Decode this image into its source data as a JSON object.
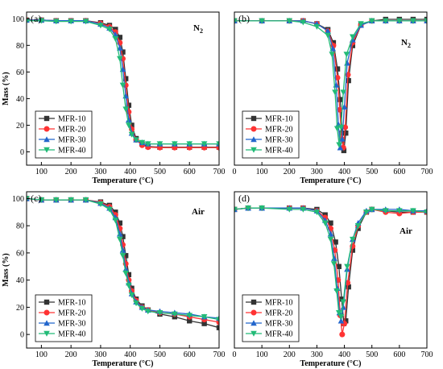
{
  "chart_data": [
    {
      "type": "line",
      "panel_label": "(a)",
      "atmosphere": "N",
      "atmosphere_subscript": "2",
      "xlabel": "Temperature (°C)",
      "ylabel": "Mass (%)",
      "xlim": [
        50,
        700
      ],
      "ylim": [
        -10,
        105
      ],
      "xticks": [
        100,
        200,
        300,
        400,
        500,
        600,
        700
      ],
      "xtick_labels": [
        "100",
        "200",
        "300",
        "400",
        "500",
        "600",
        "700"
      ],
      "yticks": [
        0,
        20,
        40,
        60,
        80,
        100
      ],
      "ytick_labels": [
        "0",
        "20",
        "40",
        "60",
        "80",
        "100"
      ],
      "legend_position": "bottom-left",
      "series": [
        {
          "name": "MFR-10",
          "color": "#333333",
          "marker": "square",
          "x": [
            50,
            100,
            150,
            200,
            250,
            300,
            330,
            350,
            365,
            375,
            385,
            395,
            405,
            420,
            440,
            460,
            500,
            550,
            600,
            650,
            700
          ],
          "y": [
            99,
            99,
            98.5,
            98.5,
            98.5,
            97,
            95,
            92,
            86,
            75,
            55,
            35,
            20,
            10,
            6,
            4,
            3.5,
            3.5,
            3.5,
            3.5,
            3.5
          ]
        },
        {
          "name": "MFR-20",
          "color": "#ff3333",
          "marker": "circle",
          "x": [
            50,
            100,
            150,
            200,
            250,
            300,
            330,
            350,
            365,
            375,
            385,
            395,
            405,
            420,
            440,
            460,
            500,
            550,
            600,
            650,
            700
          ],
          "y": [
            99,
            99,
            98.5,
            98.5,
            98.5,
            96.5,
            94,
            90,
            82,
            70,
            50,
            30,
            17,
            9,
            5,
            3.5,
            3.2,
            3.2,
            3.2,
            3.2,
            3.2
          ]
        },
        {
          "name": "MFR-30",
          "color": "#2266cc",
          "marker": "triangle",
          "x": [
            50,
            100,
            150,
            200,
            250,
            300,
            330,
            350,
            365,
            375,
            385,
            395,
            405,
            420,
            440,
            460,
            500,
            550,
            600,
            650,
            700
          ],
          "y": [
            99,
            99,
            98.5,
            98.5,
            98.5,
            96,
            93,
            88,
            78,
            62,
            42,
            24,
            14,
            9,
            7,
            6,
            6,
            6,
            6,
            6,
            6
          ]
        },
        {
          "name": "MFR-40",
          "color": "#22bb77",
          "marker": "triangle-down",
          "x": [
            50,
            100,
            150,
            200,
            250,
            300,
            330,
            350,
            365,
            375,
            385,
            395,
            405,
            420,
            440,
            460,
            500,
            550,
            600,
            650,
            700
          ],
          "y": [
            98.5,
            98.5,
            98,
            98,
            98,
            95,
            92,
            85,
            70,
            50,
            32,
            20,
            13,
            9,
            7,
            6,
            6,
            6,
            6,
            6,
            6
          ]
        }
      ]
    },
    {
      "type": "line",
      "panel_label": "(b)",
      "atmosphere": "N",
      "atmosphere_subscript": "2",
      "xlabel": "Temperature (°C)",
      "ylabel": "",
      "xlim": [
        0,
        700
      ],
      "ylim": [
        0,
        105
      ],
      "xticks": [
        0,
        100,
        200,
        300,
        400,
        500,
        600,
        700
      ],
      "xtick_labels": [
        "0",
        "100",
        "200",
        "300",
        "400",
        "500",
        "600",
        "700"
      ],
      "legend_position": "bottom-center",
      "series": [
        {
          "name": "MFR-10",
          "color": "#333333",
          "marker": "square",
          "x": [
            0,
            100,
            200,
            250,
            300,
            340,
            360,
            375,
            385,
            392,
            398,
            405,
            415,
            430,
            460,
            500,
            550,
            600,
            650,
            700
          ],
          "y": [
            99,
            99,
            99,
            99,
            97,
            93,
            84,
            66,
            45,
            22,
            10,
            22,
            58,
            82,
            96,
            99,
            100,
            100,
            100,
            100
          ]
        },
        {
          "name": "MFR-20",
          "color": "#ff3333",
          "marker": "circle",
          "x": [
            0,
            100,
            200,
            250,
            300,
            340,
            360,
            375,
            383,
            390,
            396,
            403,
            413,
            430,
            460,
            500,
            550,
            600,
            650,
            700
          ],
          "y": [
            99,
            99,
            99,
            99,
            97,
            92,
            82,
            60,
            38,
            18,
            12,
            26,
            62,
            84,
            96,
            99,
            99,
            99,
            99,
            99
          ]
        },
        {
          "name": "MFR-30",
          "color": "#2266cc",
          "marker": "triangle",
          "x": [
            0,
            100,
            200,
            250,
            300,
            340,
            358,
            370,
            378,
            385,
            392,
            400,
            410,
            430,
            460,
            500,
            550,
            600,
            650,
            700
          ],
          "y": [
            99,
            99,
            99,
            99,
            97,
            92,
            80,
            55,
            28,
            12,
            18,
            40,
            70,
            86,
            96,
            99,
            99,
            99,
            99,
            99
          ]
        },
        {
          "name": "MFR-40",
          "color": "#22bb77",
          "marker": "triangle-down",
          "x": [
            0,
            100,
            200,
            250,
            300,
            340,
            355,
            366,
            374,
            381,
            388,
            396,
            408,
            430,
            460,
            500,
            550,
            600,
            650,
            700
          ],
          "y": [
            99,
            99,
            99,
            98,
            95,
            89,
            76,
            50,
            25,
            14,
            26,
            50,
            76,
            88,
            97,
            99,
            99,
            99,
            99,
            99
          ]
        }
      ]
    },
    {
      "type": "line",
      "panel_label": "(c)",
      "atmosphere": "Air",
      "atmosphere_subscript": "",
      "xlabel": "Temperature (°C)",
      "ylabel": "Mass (%)",
      "xlim": [
        50,
        700
      ],
      "ylim": [
        -10,
        105
      ],
      "xticks": [
        100,
        200,
        300,
        400,
        500,
        600,
        700
      ],
      "xtick_labels": [
        "100",
        "200",
        "300",
        "400",
        "500",
        "600",
        "700"
      ],
      "yticks": [
        0,
        20,
        40,
        60,
        80,
        100
      ],
      "ytick_labels": [
        "0",
        "20",
        "40",
        "60",
        "80",
        "100"
      ],
      "legend_position": "bottom-left",
      "series": [
        {
          "name": "MFR-10",
          "color": "#333333",
          "marker": "square",
          "x": [
            50,
            100,
            150,
            200,
            250,
            300,
            330,
            350,
            365,
            375,
            385,
            395,
            405,
            420,
            440,
            460,
            500,
            550,
            600,
            650,
            700
          ],
          "y": [
            100,
            99,
            99,
            99,
            99,
            97.5,
            95,
            90,
            82,
            72,
            58,
            44,
            34,
            26,
            21,
            18,
            15,
            13,
            10,
            8,
            5
          ]
        },
        {
          "name": "MFR-20",
          "color": "#ff3333",
          "marker": "circle",
          "x": [
            50,
            100,
            150,
            200,
            250,
            300,
            330,
            350,
            365,
            375,
            385,
            395,
            405,
            420,
            440,
            460,
            500,
            550,
            600,
            650,
            700
          ],
          "y": [
            100,
            99,
            99,
            99,
            99,
            97,
            94,
            88,
            78,
            66,
            52,
            40,
            32,
            25,
            20,
            18,
            16,
            15,
            13,
            11,
            9
          ]
        },
        {
          "name": "MFR-30",
          "color": "#2266cc",
          "marker": "triangle",
          "x": [
            50,
            100,
            150,
            200,
            250,
            300,
            330,
            350,
            365,
            375,
            385,
            395,
            405,
            420,
            440,
            460,
            500,
            550,
            600,
            650,
            700
          ],
          "y": [
            100,
            99,
            99,
            99,
            99,
            96.5,
            93,
            86,
            74,
            62,
            48,
            38,
            30,
            24,
            20,
            18,
            17,
            16,
            15,
            13,
            12
          ]
        },
        {
          "name": "MFR-40",
          "color": "#22bb77",
          "marker": "triangle-down",
          "x": [
            50,
            100,
            150,
            200,
            250,
            300,
            330,
            350,
            365,
            375,
            385,
            395,
            405,
            420,
            440,
            460,
            500,
            550,
            600,
            650,
            700
          ],
          "y": [
            100,
            99,
            99,
            99,
            99,
            96,
            92,
            84,
            70,
            58,
            45,
            36,
            29,
            23,
            19,
            17,
            16,
            15,
            14,
            13,
            11
          ]
        }
      ]
    },
    {
      "type": "line",
      "panel_label": "(d)",
      "atmosphere": "Air",
      "atmosphere_subscript": "",
      "xlabel": "Temperature (°C)",
      "ylabel": "",
      "xlim": [
        0,
        700
      ],
      "ylim": [
        -10,
        105
      ],
      "xticks": [
        0,
        100,
        200,
        300,
        400,
        500,
        600,
        700
      ],
      "xtick_labels": [
        "0",
        "100",
        "200",
        "300",
        "400",
        "500",
        "600",
        "700"
      ],
      "legend_position": "bottom-center",
      "series": [
        {
          "name": "MFR-10",
          "color": "#333333",
          "marker": "square",
          "x": [
            0,
            50,
            100,
            200,
            250,
            300,
            330,
            350,
            368,
            380,
            390,
            398,
            405,
            415,
            430,
            450,
            480,
            500,
            550,
            600,
            650,
            700
          ],
          "y": [
            92,
            93,
            93,
            93,
            93,
            92,
            88,
            82,
            68,
            50,
            26,
            8,
            10,
            35,
            62,
            78,
            90,
            92,
            91,
            90,
            90,
            90
          ]
        },
        {
          "name": "MFR-20",
          "color": "#ff3333",
          "marker": "circle",
          "x": [
            0,
            50,
            100,
            200,
            250,
            300,
            330,
            350,
            365,
            377,
            385,
            392,
            400,
            412,
            430,
            450,
            480,
            500,
            550,
            600,
            650,
            700
          ],
          "y": [
            92,
            93,
            93,
            93,
            93,
            91,
            86,
            78,
            62,
            40,
            14,
            0,
            8,
            38,
            65,
            80,
            90,
            92,
            90,
            89,
            90,
            90
          ]
        },
        {
          "name": "MFR-30",
          "color": "#2266cc",
          "marker": "triangle",
          "x": [
            0,
            50,
            100,
            200,
            250,
            300,
            330,
            350,
            363,
            374,
            382,
            388,
            396,
            410,
            430,
            450,
            480,
            500,
            550,
            600,
            650,
            700
          ],
          "y": [
            92,
            93,
            93,
            93,
            93,
            91,
            84,
            74,
            56,
            34,
            16,
            10,
            20,
            48,
            70,
            82,
            91,
            92,
            92,
            92,
            91,
            91
          ]
        },
        {
          "name": "MFR-40",
          "color": "#22bb77",
          "marker": "triangle-down",
          "x": [
            0,
            50,
            100,
            200,
            250,
            300,
            330,
            350,
            362,
            372,
            380,
            388,
            396,
            410,
            430,
            450,
            480,
            500,
            550,
            600,
            650,
            700
          ],
          "y": [
            92,
            93,
            93,
            92,
            92,
            90,
            82,
            70,
            52,
            32,
            16,
            13,
            24,
            50,
            70,
            80,
            90,
            92,
            91,
            91,
            91,
            90
          ]
        }
      ]
    }
  ]
}
